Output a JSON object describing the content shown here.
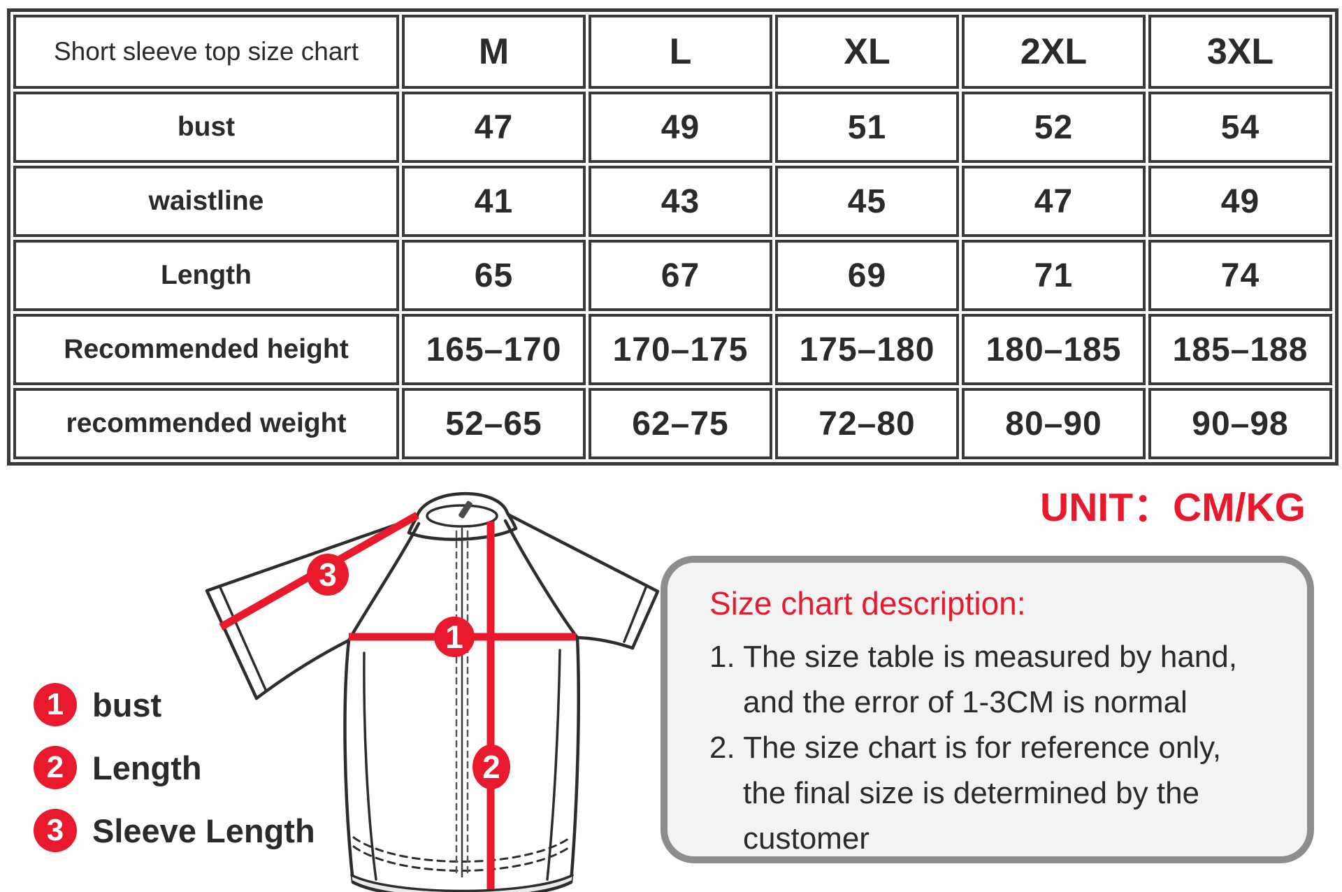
{
  "table": {
    "corner_label": "Short sleeve top size chart",
    "sizes": [
      "M",
      "L",
      "XL",
      "2XL",
      "3XL"
    ],
    "rows": [
      {
        "label": "bust",
        "values": [
          "47",
          "49",
          "51",
          "52",
          "54"
        ]
      },
      {
        "label": "waistline",
        "values": [
          "41",
          "43",
          "45",
          "47",
          "49"
        ]
      },
      {
        "label": "Length",
        "values": [
          "65",
          "67",
          "69",
          "71",
          "74"
        ]
      },
      {
        "label": "Recommended height",
        "values": [
          "165–170",
          "170–175",
          "175–180",
          "180–185",
          "185–188"
        ]
      },
      {
        "label": "recommended weight",
        "values": [
          "52–65",
          "62–75",
          "72–80",
          "80–90",
          "90–98"
        ]
      }
    ]
  },
  "chart_data": {
    "type": "table",
    "title": "Short sleeve top size chart",
    "columns": [
      "M",
      "L",
      "XL",
      "2XL",
      "3XL"
    ],
    "rows": [
      {
        "label": "bust",
        "values": [
          47,
          49,
          51,
          52,
          54
        ]
      },
      {
        "label": "waistline",
        "values": [
          41,
          43,
          45,
          47,
          49
        ]
      },
      {
        "label": "Length",
        "values": [
          65,
          67,
          69,
          71,
          74
        ]
      },
      {
        "label": "Recommended height",
        "values": [
          "165–170",
          "170–175",
          "175–180",
          "180–185",
          "185–188"
        ]
      },
      {
        "label": "recommended weight",
        "values": [
          "52–65",
          "62–75",
          "72–80",
          "80–90",
          "90–98"
        ]
      }
    ],
    "unit": "CM/KG"
  },
  "unit_label": "UNIT：CM/KG",
  "jersey": {
    "markers": [
      {
        "number": "1",
        "label": "bust"
      },
      {
        "number": "2",
        "label": "Length"
      },
      {
        "number": "3",
        "label": "Sleeve Length"
      }
    ]
  },
  "legend": {
    "items": [
      {
        "number": "1",
        "label": "bust"
      },
      {
        "number": "2",
        "label": "Length"
      },
      {
        "number": "3",
        "label": "Sleeve Length"
      }
    ]
  },
  "description": {
    "title": "Size chart description:",
    "lines": [
      {
        "text": "1. The size table is measured by hand,",
        "indent": false
      },
      {
        "text": "and the error of 1-3CM is normal",
        "indent": true
      },
      {
        "text": "2. The size chart is for reference only,",
        "indent": false
      },
      {
        "text": "the final size is determined by the",
        "indent": true
      },
      {
        "text": "customer",
        "indent": true
      }
    ]
  },
  "colors": {
    "accent_red": "#e8192c",
    "table_border": "#3c3a39",
    "text": "#2b2a29",
    "box_border": "#8d8d8d",
    "box_fill": "#f3f3f3"
  }
}
